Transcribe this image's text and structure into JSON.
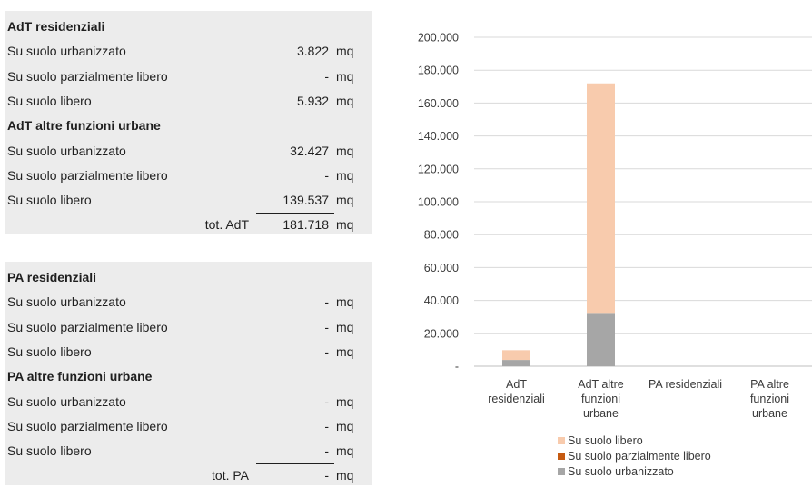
{
  "table_adt": {
    "rows": [
      {
        "label": "AdT residenziali",
        "head": true
      },
      {
        "label": "Su suolo urbanizzato",
        "value": "3.822",
        "unit": "mq"
      },
      {
        "label": "Su suolo parzialmente libero",
        "value": "-",
        "unit": "mq"
      },
      {
        "label": "Su suolo libero",
        "value": "5.932",
        "unit": "mq"
      },
      {
        "label": "AdT altre funzioni urbane",
        "head": true
      },
      {
        "label": "Su suolo urbanizzato",
        "value": "32.427",
        "unit": "mq"
      },
      {
        "label": "Su suolo parzialmente libero",
        "value": "-",
        "unit": "mq"
      },
      {
        "label": "Su suolo libero",
        "value": "139.537",
        "unit": "mq"
      }
    ],
    "total": {
      "label": "tot. AdT",
      "value": "181.718",
      "unit": "mq"
    }
  },
  "table_pa": {
    "rows": [
      {
        "label": "PA residenziali",
        "head": true
      },
      {
        "label": "Su suolo urbanizzato",
        "value": "-",
        "unit": "mq"
      },
      {
        "label": "Su suolo parzialmente libero",
        "value": "-",
        "unit": "mq"
      },
      {
        "label": "Su suolo libero",
        "value": "-",
        "unit": "mq"
      },
      {
        "label": "PA altre funzioni urbane",
        "head": true
      },
      {
        "label": "Su suolo urbanizzato",
        "value": "-",
        "unit": "mq"
      },
      {
        "label": "Su suolo parzialmente libero",
        "value": "-",
        "unit": "mq"
      },
      {
        "label": "Su suolo libero",
        "value": "-",
        "unit": "mq"
      }
    ],
    "total": {
      "label": "tot. PA",
      "value": "-",
      "unit": "mq"
    }
  },
  "chart_data": {
    "type": "bar",
    "stacked": true,
    "categories": [
      [
        "AdT",
        "residenziali"
      ],
      [
        "AdT altre",
        "funzioni",
        "urbane"
      ],
      [
        "PA residenziali"
      ],
      [
        "PA altre",
        "funzioni",
        "urbane"
      ]
    ],
    "series": [
      {
        "name": "Su suolo urbanizzato",
        "values": [
          3822,
          32427,
          0,
          0
        ],
        "color": "#a6a6a6"
      },
      {
        "name": "Su suolo parzialmente libero",
        "values": [
          0,
          0,
          0,
          0
        ],
        "color": "#c55a11"
      },
      {
        "name": "Su suolo libero",
        "values": [
          5932,
          139537,
          0,
          0
        ],
        "color": "#f8cbad"
      }
    ],
    "y_ticks": [
      "-",
      "20.000",
      "40.000",
      "60.000",
      "80.000",
      "100.000",
      "120.000",
      "140.000",
      "160.000",
      "180.000",
      "200.000"
    ],
    "ylim": [
      0,
      200000
    ],
    "grid": true,
    "legend": [
      "Su suolo libero",
      "Su suolo parzialmente libero",
      "Su suolo urbanizzato"
    ],
    "legend_position": "bottom"
  }
}
